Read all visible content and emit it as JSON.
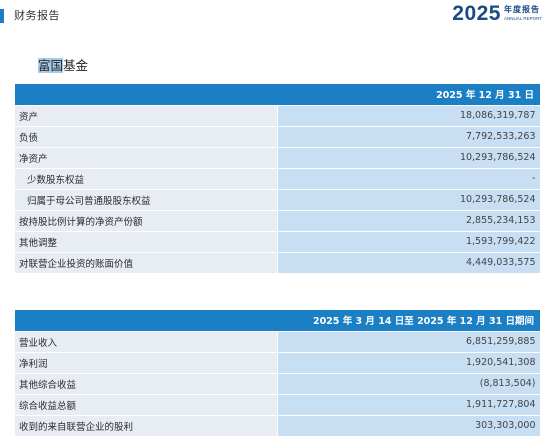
{
  "header": {
    "title": "财务报告",
    "year": "2025",
    "year_cn": "年度报告",
    "year_en": "ANNUAL REPORT"
  },
  "section": {
    "title_highlight": "富国",
    "title_rest": "基金"
  },
  "table1": {
    "column_header": "2025 年 12 月 31 日",
    "rows": [
      {
        "label": "资产",
        "value": "18,086,319,787"
      },
      {
        "label": "负债",
        "value": "7,792,533,263"
      },
      {
        "label": "净资产",
        "value": "10,293,786,524"
      },
      {
        "label": "少数股东权益",
        "value": "-"
      },
      {
        "label": "归属于母公司普通股股东权益",
        "value": "10,293,786,524"
      },
      {
        "label": "按持股比例计算的净资产份额",
        "value": "2,855,234,153"
      },
      {
        "label": "其他调整",
        "value": "1,593,799,422"
      },
      {
        "label": "对联营企业投资的账面价值",
        "value": "4,449,033,575"
      }
    ]
  },
  "table2": {
    "column_header": "2025 年 3 月 14 日至 2025 年 12 月 31 日期间",
    "rows": [
      {
        "label": "营业收入",
        "value": "6,851,259,885"
      },
      {
        "label": "净利润",
        "value": "1,920,541,308"
      },
      {
        "label": "其他综合收益",
        "value": "(8,813,504)"
      },
      {
        "label": "综合收益总额",
        "value": "1,911,727,804"
      },
      {
        "label": "收到的来自联营企业的股利",
        "value": "303,303,000"
      }
    ]
  }
}
